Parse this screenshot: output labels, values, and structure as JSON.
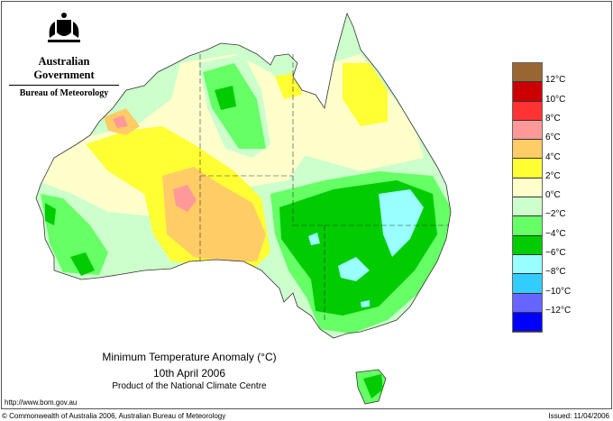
{
  "header": {
    "organisation": "Australian Government",
    "agency": "Bureau of Meteorology",
    "logo_icon": "coat-of-arms-icon"
  },
  "map": {
    "title": "Minimum Temperature Anomaly (°C)",
    "date": "10th April 2006",
    "product": "Product of the National Climate Centre"
  },
  "legend": {
    "colors": [
      "#996633",
      "#cc0000",
      "#ff3333",
      "#ff9999",
      "#ffcc66",
      "#ffff33",
      "#ffffcc",
      "#ccffcc",
      "#66ff66",
      "#00cc00",
      "#99ffff",
      "#33ccff",
      "#6666ff",
      "#0000ff"
    ],
    "labels": [
      "12°C",
      "10°C",
      "8°C",
      "6°C",
      "4°C",
      "2°C",
      "0°C",
      "−2°C",
      "−4°C",
      "−6°C",
      "−8°C",
      "−10°C",
      "−12°C"
    ]
  },
  "footer": {
    "url": "http://www.bom.gov.au",
    "copyright": "© Commonwealth of Australia 2006, Australian Bureau of Meteorology",
    "issued": "Issued: 11/04/2006"
  }
}
